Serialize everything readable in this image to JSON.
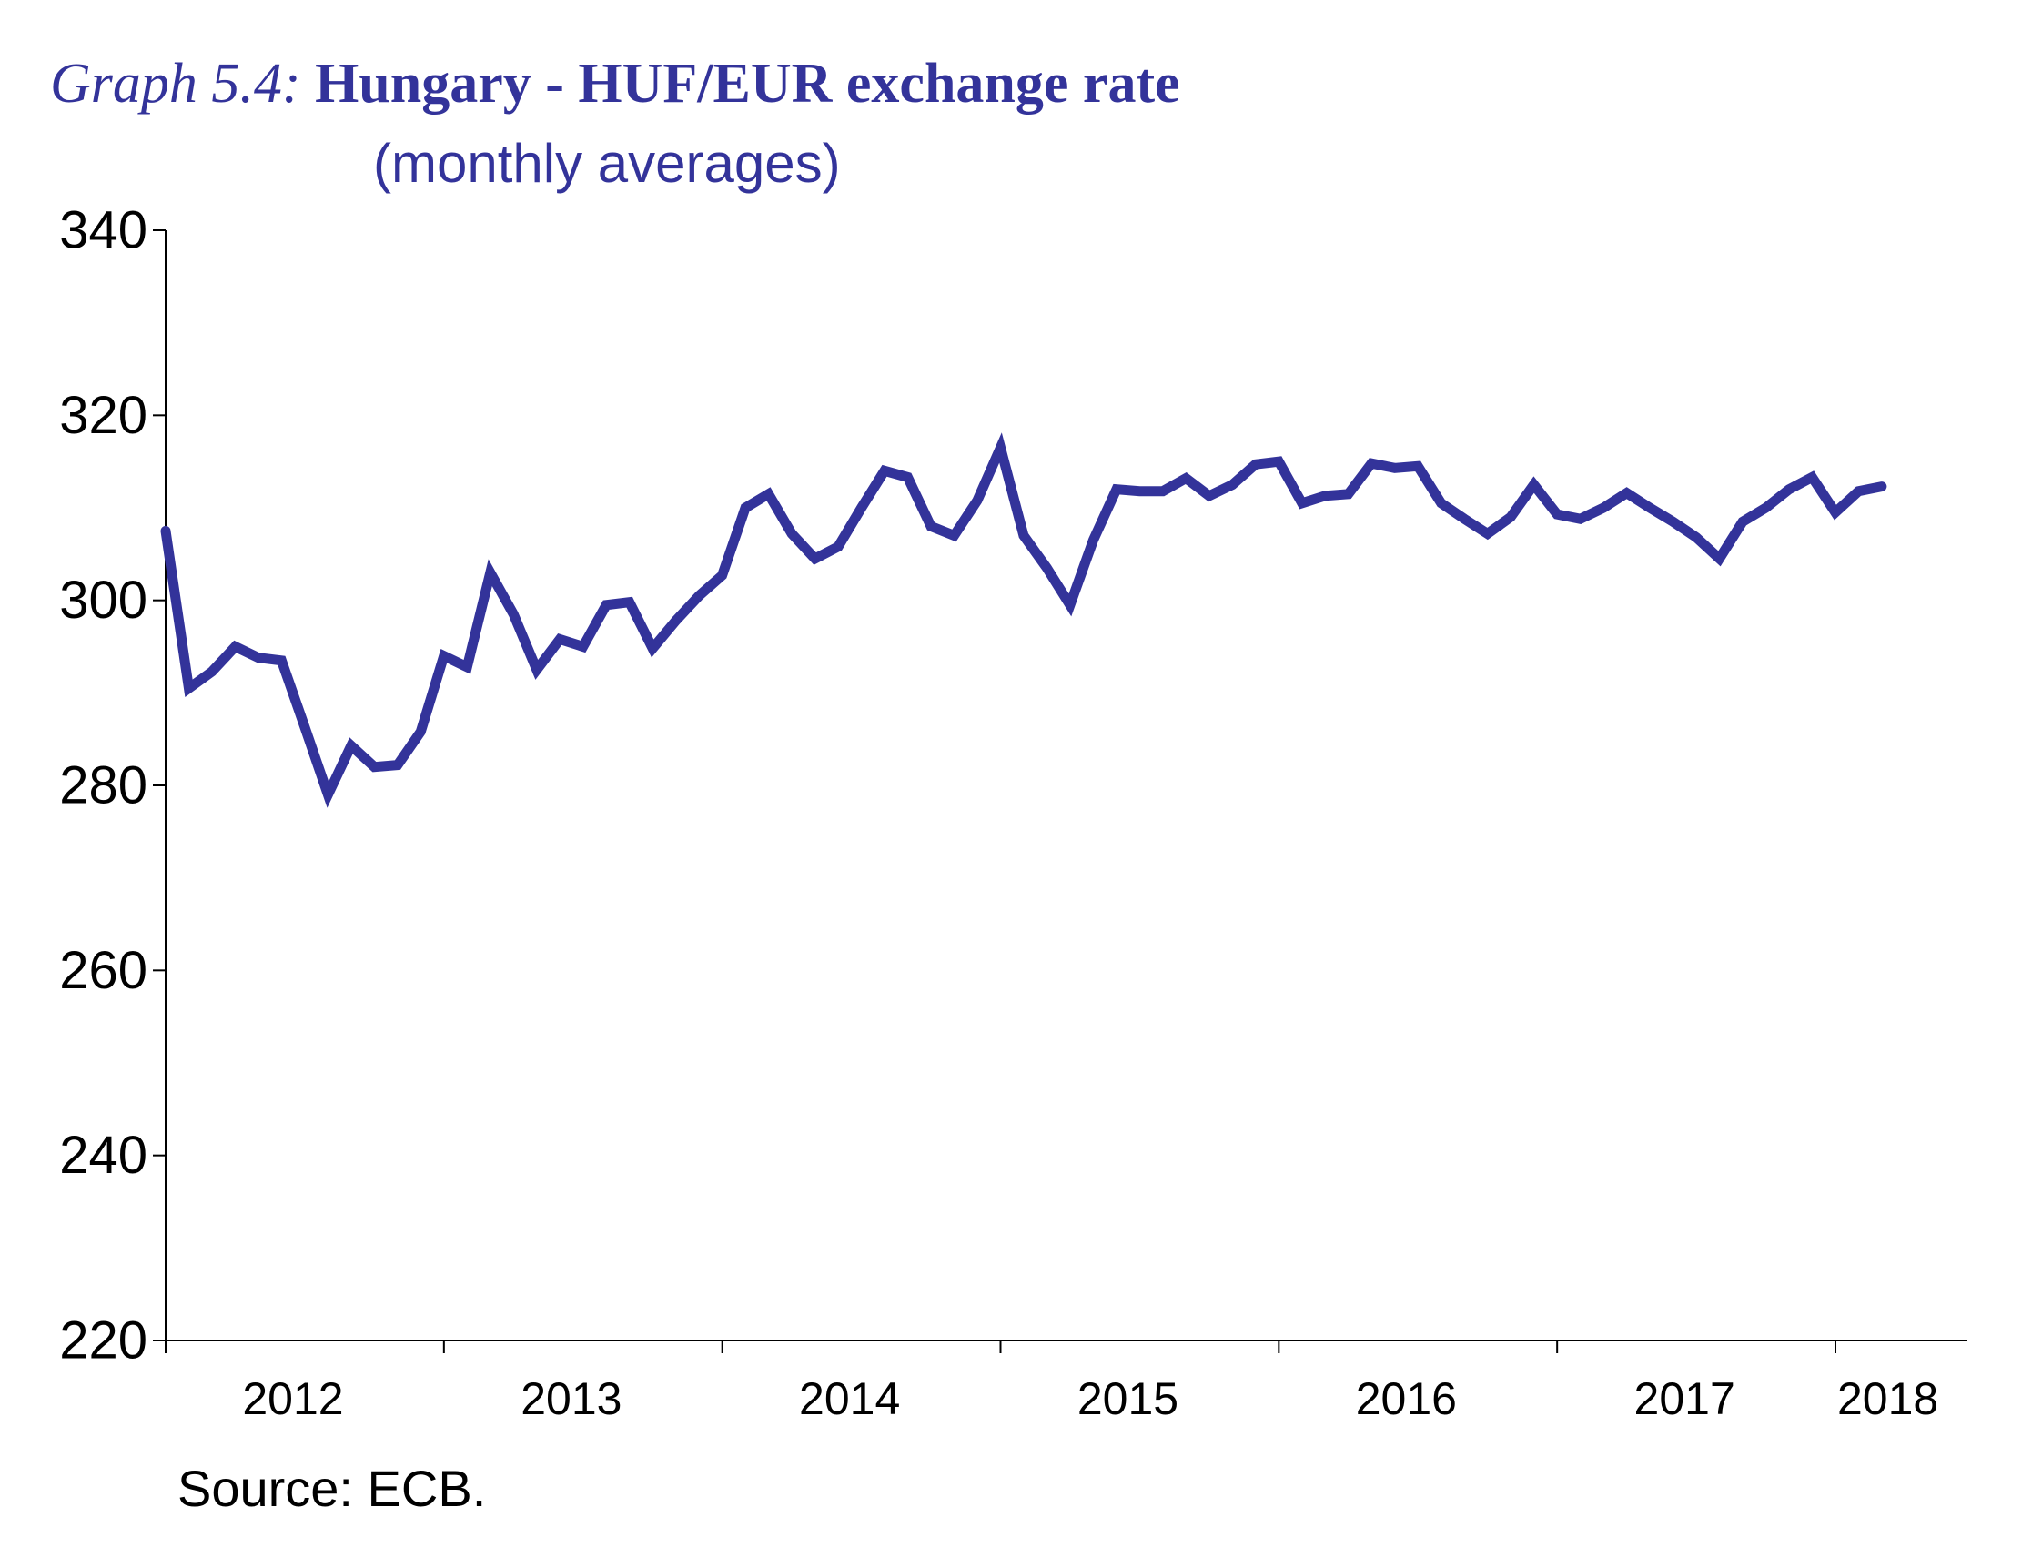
{
  "title": {
    "prefix": "Graph 5.4:",
    "main": "Hungary - HUF/EUR exchange rate",
    "subtitle": "(monthly averages)"
  },
  "source": "Source: ECB.",
  "colors": {
    "series": "#33339a",
    "axis": "#000000",
    "title": "#33339a"
  },
  "chart_data": {
    "type": "line",
    "title": "Hungary - HUF/EUR exchange rate",
    "subtitle": "(monthly averages)",
    "xlabel": "",
    "ylabel": "",
    "ylim": [
      220,
      340
    ],
    "yticks": [
      220,
      240,
      260,
      280,
      300,
      320,
      340
    ],
    "xlim": [
      2012,
      2018
    ],
    "xticks": [
      2012,
      2013,
      2014,
      2015,
      2016,
      2017,
      2018
    ],
    "xtick_labels": [
      "2012",
      "2013",
      "2014",
      "2015",
      "2016",
      "2017",
      "2018"
    ],
    "grid": false,
    "legend": "none",
    "series": [
      {
        "name": "HUF/EUR exchange rate",
        "x_start": 2012,
        "step": 0.08333,
        "values": [
          307.5,
          290.5,
          292.3,
          295.0,
          293.8,
          293.5,
          286.3,
          279.0,
          284.3,
          282.0,
          282.2,
          285.8,
          294.0,
          292.8,
          303.0,
          298.5,
          292.5,
          295.8,
          295.0,
          299.5,
          299.8,
          294.8,
          297.8,
          300.5,
          302.7,
          310.0,
          311.5,
          307.2,
          304.5,
          305.8,
          310.0,
          314.0,
          313.3,
          308.0,
          307.0,
          310.8,
          316.5,
          307.0,
          303.5,
          299.5,
          306.5,
          312.0,
          311.8,
          311.8,
          313.2,
          311.3,
          312.5,
          314.7,
          315.0,
          310.5,
          311.3,
          311.5,
          314.8,
          314.3,
          314.5,
          310.5,
          308.8,
          307.2,
          309.0,
          312.5,
          309.3,
          308.8,
          310.0,
          311.6,
          310.0,
          308.5,
          306.8,
          304.5,
          308.5,
          310.0,
          312.0,
          313.3,
          309.5,
          311.8,
          312.3
        ]
      }
    ]
  }
}
